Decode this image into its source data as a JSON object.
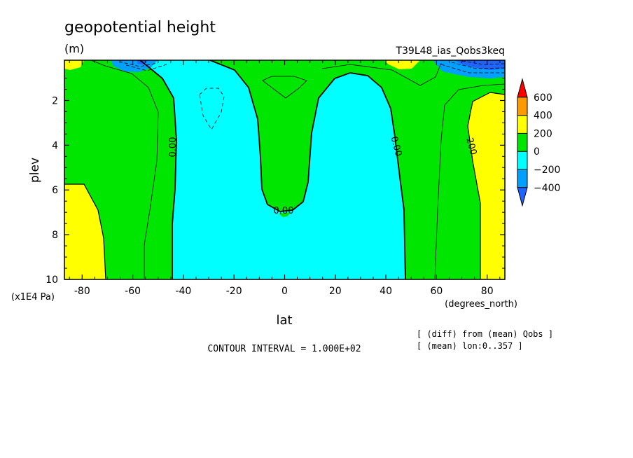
{
  "chart_data": {
    "type": "contour",
    "title": "geopotential height",
    "units": "(m)",
    "experiment": "T39L48_ias_Qobs3keq",
    "xlabel": "lat",
    "xunits": "(degrees_north)",
    "ylabel": "plev",
    "yunits": "(x1E4 Pa)",
    "xlim": [
      -87,
      87
    ],
    "ylim": [
      10,
      0.2
    ],
    "x_ticks": [
      -80,
      -60,
      -40,
      -20,
      0,
      20,
      40,
      60,
      80
    ],
    "x_tick_labels": [
      "-80",
      "-60",
      "-40",
      "-20",
      "0",
      "20",
      "40",
      "60",
      "80"
    ],
    "y_ticks": [
      2,
      4,
      6,
      8,
      10
    ],
    "y_tick_labels": [
      "2",
      "4",
      "6",
      "8",
      "10"
    ],
    "contour_labels": [
      "0.00",
      "0.00",
      "0.00",
      "200."
    ],
    "contour_interval_text": "CONTOUR INTERVAL = 1.000E+02",
    "notes": [
      "[ (diff) from (mean) Qobs ]",
      "[ (mean) lon:0..357 ]"
    ],
    "colorbar": {
      "levels": [
        -400,
        -200,
        0,
        200,
        400,
        600
      ],
      "labels": [
        "600",
        "400",
        "200",
        "0",
        "−200",
        "−400"
      ],
      "colors": [
        "#1e64ff",
        "#00a0ff",
        "#00ffff",
        "#00e600",
        "#ffff00",
        "#ff9900",
        "#ff0000"
      ]
    },
    "regions": [
      {
        "range": "-200..0",
        "color": "#00ffff",
        "lat_edges_at_surface": [
          -45,
          48
        ],
        "min_plev_central": 7.1
      },
      {
        "range": "0..200",
        "color": "#00e600"
      },
      {
        "range": "200..400",
        "color": "#ffff00",
        "lat_edges_at_surface": [
          -72,
          80
        ]
      }
    ]
  }
}
